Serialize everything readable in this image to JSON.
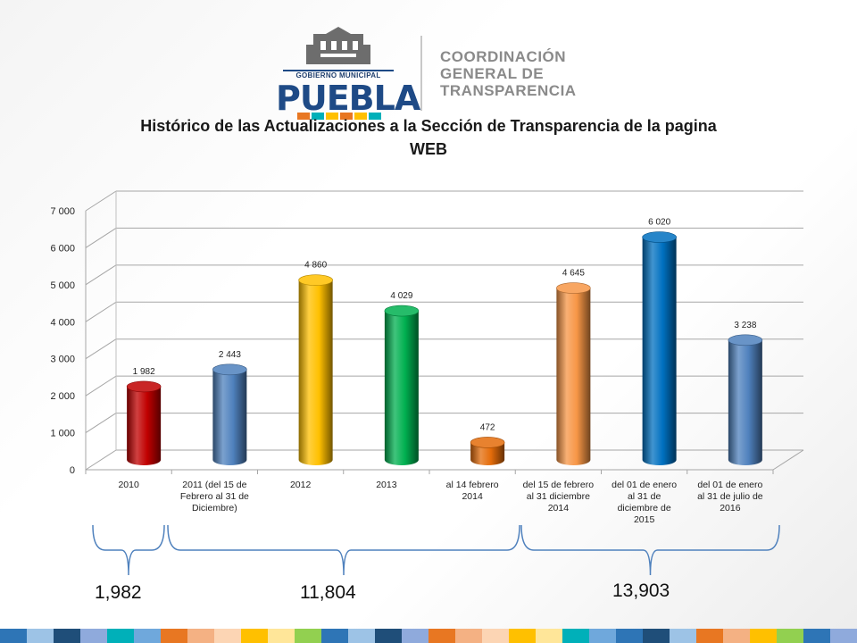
{
  "logo": {
    "gov_label": "GOBIERNO MUNICIPAL",
    "city": "PUEBLA",
    "lines": [
      "COORDINACIÓN",
      "GENERAL DE",
      "TRANSPARENCIA"
    ]
  },
  "chart_data": {
    "type": "bar",
    "title": "Histórico de las Actualizaciones a la Sección de Transparencia de la pagina WEB",
    "title_lines": [
      "Histórico de las Actualizaciones a la Sección de Transparencia de la pagina",
      "WEB"
    ],
    "ylim": [
      0,
      7000
    ],
    "yticks": [
      0,
      1000,
      2000,
      3000,
      4000,
      5000,
      6000,
      7000
    ],
    "ytick_labels": [
      "0",
      "1 000",
      "2 000",
      "3 000",
      "4 000",
      "5 000",
      "6 000",
      "7 000"
    ],
    "categories": [
      [
        "2010"
      ],
      [
        "2011 (del 15 de",
        "Febrero al 31 de",
        "Diciembre)"
      ],
      [
        "2012"
      ],
      [
        "2013"
      ],
      [
        "al 14 febrero",
        "2014"
      ],
      [
        "del 15 de febrero",
        "al 31 diciembre",
        "2014"
      ],
      [
        "del 01 de enero",
        "al 31 de",
        "diciembre de",
        "2015"
      ],
      [
        "del 01 de enero",
        "al 31 de julio de",
        "2016"
      ]
    ],
    "values": [
      1982,
      2443,
      4860,
      4029,
      472,
      4645,
      6020,
      3238
    ],
    "value_labels": [
      "1 982",
      "2 443",
      "4 860",
      "4 029",
      "472",
      "4 645",
      "6 020",
      "3 238"
    ],
    "bar_colors": [
      "#c00000",
      "#4f81bd",
      "#ffc000",
      "#00b050",
      "#e46c0a",
      "#f79646",
      "#0070c0",
      "#4f81bd"
    ],
    "grid": true,
    "legend": "none"
  },
  "groups": [
    {
      "label": "1,982"
    },
    {
      "label": "11,804"
    },
    {
      "label": "13,903"
    }
  ],
  "colors": {
    "footer": [
      "#2e75b6",
      "#9dc3e6",
      "#1f4e79",
      "#8faadc",
      "#00b0b9",
      "#6fa8dc",
      "#e87722",
      "#f4b183",
      "#fcd5b4",
      "#ffc000",
      "#ffe699",
      "#92d050",
      "#2e75b6",
      "#9dc3e6",
      "#1f4e79",
      "#8faadc",
      "#e87722",
      "#f4b183",
      "#fcd5b4",
      "#ffc000",
      "#ffe699",
      "#00b0b9",
      "#6fa8dc",
      "#2e75b6",
      "#1f4e79",
      "#9dc3e6",
      "#e87722",
      "#f4b183",
      "#ffc000",
      "#92d050",
      "#2e75b6",
      "#8faadc"
    ]
  }
}
